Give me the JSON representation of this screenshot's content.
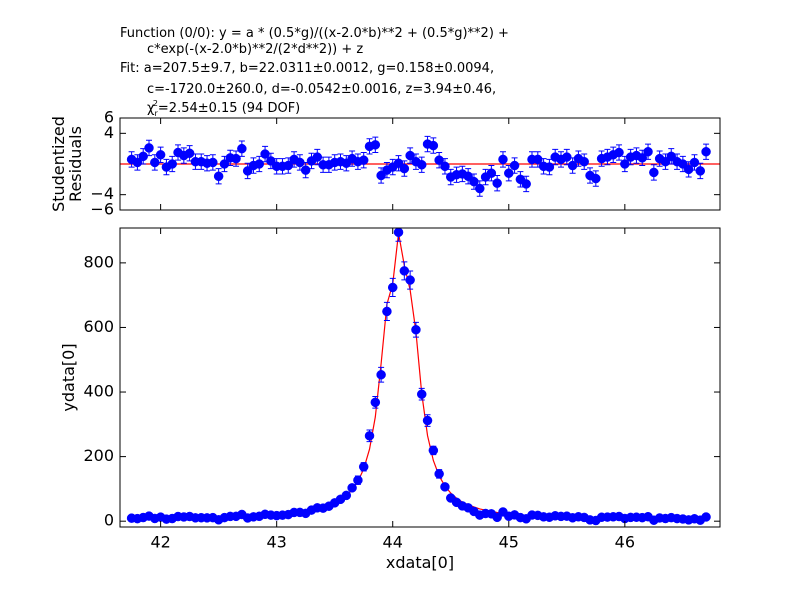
{
  "chart_data": [
    {
      "type": "scatter",
      "annotations": [
        "Function (0/0): y = a * (0.5*g)/((x-2.0*b)**2 + (0.5*g)**2) +",
        "c*exp(-(x-2.0*b)**2/(2*d**2)) + z",
        "Fit: a=207.5±9.7, b=22.0311±0.0012, g=0.158±0.0094,",
        "c=-1720.0±260.0, d=-0.0542±0.0016, z=3.94±0.46,"
      ],
      "chi2": {
        "symbol": "χ",
        "sub": "r",
        "sup": "2",
        "text": "=2.54±0.15 (94 DOF)"
      },
      "ylabel": [
        "Studentized",
        "Residuals"
      ],
      "xlim": [
        41.65,
        46.82
      ],
      "xticks": [
        42,
        43,
        44,
        45,
        46
      ],
      "ylim": [
        -6,
        6
      ],
      "yticks": [
        6,
        4,
        {
          "value": -4,
          "label": "−4"
        },
        {
          "value": -6,
          "label": "−6"
        }
      ],
      "reference_line": 0,
      "color": "#0000ff",
      "line_color": "#ff0000",
      "error": 1,
      "x": [
        41.75,
        41.8,
        41.85,
        41.9,
        41.95,
        42,
        42.05,
        42.1,
        42.15,
        42.2,
        42.25,
        42.3,
        42.35,
        42.4,
        42.45,
        42.5,
        42.55,
        42.6,
        42.65,
        42.7,
        42.75,
        42.8,
        42.85,
        42.9,
        42.95,
        43,
        43.05,
        43.1,
        43.15,
        43.2,
        43.25,
        43.3,
        43.35,
        43.4,
        43.45,
        43.5,
        43.55,
        43.6,
        43.65,
        43.7,
        43.75,
        43.8,
        43.85,
        43.9,
        43.95,
        44,
        44.05,
        44.1,
        44.15,
        44.2,
        44.25,
        44.3,
        44.35,
        44.4,
        44.45,
        44.5,
        44.55,
        44.6,
        44.65,
        44.7,
        44.75,
        44.8,
        44.85,
        44.9,
        44.95,
        45,
        45.05,
        45.1,
        45.15,
        45.2,
        45.25,
        45.3,
        45.35,
        45.4,
        45.45,
        45.5,
        45.55,
        45.6,
        45.65,
        45.7,
        45.75,
        45.8,
        45.85,
        45.9,
        45.95,
        46,
        46.05,
        46.1,
        46.15,
        46.2,
        46.25,
        46.3,
        46.35,
        46.4,
        46.45,
        46.5,
        46.55,
        46.6,
        46.65,
        46.7
      ],
      "values": [
        0.6,
        0.2,
        1.0,
        2.1,
        0.2,
        1.2,
        -0.4,
        0.0,
        1.5,
        1.1,
        1.4,
        0.3,
        0.3,
        0.1,
        0.2,
        -1.6,
        0.0,
        0.8,
        0.7,
        2.0,
        -0.9,
        -0.2,
        0.0,
        1.3,
        0.4,
        -0.3,
        -0.3,
        -0.2,
        0.6,
        0.2,
        -0.8,
        0.4,
        0.9,
        -0.1,
        -0.1,
        0.2,
        0.3,
        0.1,
        0.7,
        0.3,
        0.5,
        2.3,
        2.5,
        -1.5,
        -0.8,
        -0.4,
        0.1,
        -0.6,
        1.1,
        0.3,
        -0.1,
        2.6,
        2.4,
        0.5,
        -0.3,
        -1.7,
        -1.4,
        -1.3,
        -1.6,
        -2.3,
        -3.2,
        -1.7,
        -1.2,
        -2.5,
        0.6,
        -1.2,
        -0.2,
        -2.0,
        -2.6,
        0.6,
        0.6,
        -0.3,
        -0.4,
        0.9,
        0.6,
        0.9,
        -0.2,
        0.7,
        0.3,
        -1.5,
        -1.9,
        0.7,
        0.9,
        1.2,
        1.5,
        0.0,
        0.9,
        1.1,
        0.8,
        1.6,
        -1.1,
        0.7,
        0.3,
        1.0,
        0.3,
        0.0,
        -0.7,
        0.2,
        -0.9,
        1.6
      ]
    },
    {
      "type": "scatter",
      "xlabel": "xdata[0]",
      "ylabel": "ydata[0]",
      "xlim": [
        41.65,
        46.82
      ],
      "xticks": [
        42,
        43,
        44,
        45,
        46
      ],
      "ylim": [
        -18,
        908
      ],
      "yticks": [
        0,
        200,
        400,
        600,
        800
      ],
      "color": "#0000ff",
      "line_color": "#ff0000",
      "x": [
        41.75,
        41.8,
        41.85,
        41.9,
        41.95,
        42,
        42.05,
        42.1,
        42.15,
        42.2,
        42.25,
        42.3,
        42.35,
        42.4,
        42.45,
        42.5,
        42.55,
        42.6,
        42.65,
        42.7,
        42.75,
        42.8,
        42.85,
        42.9,
        42.95,
        43,
        43.05,
        43.1,
        43.15,
        43.2,
        43.25,
        43.3,
        43.35,
        43.4,
        43.45,
        43.5,
        43.55,
        43.6,
        43.65,
        43.7,
        43.75,
        43.8,
        43.85,
        43.9,
        43.95,
        44,
        44.05,
        44.1,
        44.15,
        44.2,
        44.25,
        44.3,
        44.35,
        44.4,
        44.45,
        44.5,
        44.55,
        44.6,
        44.65,
        44.7,
        44.75,
        44.8,
        44.85,
        44.9,
        44.95,
        45,
        45.05,
        45.1,
        45.15,
        45.2,
        45.25,
        45.3,
        45.35,
        45.4,
        45.45,
        45.5,
        45.55,
        45.6,
        45.65,
        45.7,
        45.75,
        45.8,
        45.85,
        45.9,
        45.95,
        46,
        46.05,
        46.1,
        46.15,
        46.2,
        46.25,
        46.3,
        46.35,
        46.4,
        46.45,
        46.5,
        46.55,
        46.6,
        46.65,
        46.7
      ],
      "values": [
        9.4,
        7.9,
        11.3,
        15.8,
        8.4,
        12.6,
        6.4,
        8.2,
        14.4,
        13.1,
        14.5,
        10.4,
        10.7,
        10.3,
        11.0,
        4.3,
        11.1,
        14.8,
        15.0,
        20.8,
        9.9,
        13.4,
        15.1,
        21.3,
        18.8,
        17.2,
        18.7,
        20.4,
        27.1,
        27.2,
        24.2,
        34.4,
        41.4,
        40.4,
        46.4,
        56.8,
        67.7,
        79.9,
        103.3,
        126.9,
        168.5,
        264.4,
        368,
        453.5,
        649.6,
        723.8,
        894.8,
        775.2,
        746.8,
        592.9,
        393.2,
        311.8,
        219.2,
        146.5,
        106.3,
        71.7,
        58.4,
        47.3,
        41.4,
        30.2,
        18.8,
        23.8,
        22.8,
        12,
        28.6,
        15.3,
        19.5,
        11.1,
        7.4,
        19.0,
        18.0,
        13.5,
        12.2,
        16.7,
        14.8,
        15.5,
        10.5,
        13.7,
        11.6,
        4.0,
        2.1,
        12.2,
        12.7,
        13.6,
        14.5,
        8.3,
        11.7,
        12.3,
        10.9,
        13.9,
        3.0,
        10.0,
        8.3,
        11.0,
        8.1,
        6.8,
        4.0,
        7.5,
        3.1,
        13.0
      ],
      "errors": [
        4,
        4,
        4,
        4,
        4,
        4,
        4,
        4,
        4,
        4,
        4,
        4,
        4,
        4,
        4,
        4,
        4,
        4,
        4,
        4,
        4,
        4,
        4,
        4,
        4,
        4,
        4,
        6,
        6,
        6,
        6,
        6,
        6,
        6,
        6,
        9,
        9,
        9,
        9,
        13,
        13,
        18,
        18,
        23,
        28,
        28,
        28,
        28,
        28,
        23,
        18,
        18,
        13,
        13,
        9,
        9,
        9,
        9,
        6,
        6,
        6,
        6,
        6,
        6,
        6,
        6,
        6,
        4,
        4,
        4,
        4,
        4,
        4,
        4,
        4,
        4,
        4,
        4,
        4,
        4,
        4,
        4,
        4,
        4,
        4,
        4,
        4,
        4,
        4,
        4,
        4,
        4,
        4,
        4,
        4,
        4,
        4,
        4,
        4,
        4
      ],
      "fit": [
        7.0,
        7.1,
        7.3,
        7.4,
        7.6,
        7.8,
        8.0,
        8.2,
        8.4,
        8.7,
        8.9,
        9.2,
        9.5,
        9.9,
        10.2,
        10.7,
        11.1,
        11.6,
        12.2,
        12.8,
        13.5,
        14.2,
        15.1,
        16.1,
        17.2,
        18.4,
        19.9,
        21.6,
        23.5,
        26,
        29,
        32,
        36,
        41,
        47,
        55,
        65,
        79,
        97,
        123,
        162,
        223,
        323,
        488,
        672,
        735,
        892,
        792,
        716,
        586,
        395,
        265,
        188,
        140,
        109,
        87,
        71,
        59,
        51,
        44,
        38,
        34,
        30,
        27,
        25,
        22.5,
        20.7,
        19.1,
        17.8,
        16.6,
        15.6,
        14.7,
        13.8,
        13.1,
        12.4,
        11.9,
        11.3,
        10.9,
        10.4,
        10.0,
        9.7,
        9.4,
        9.1,
        8.8,
        8.5,
        8.3,
        8.1,
        7.9,
        7.7,
        7.5,
        7.4,
        7.2,
        7.1,
        7.0,
        6.9,
        6.8,
        6.8,
        6.7,
        6.7,
        6.6
      ]
    }
  ]
}
